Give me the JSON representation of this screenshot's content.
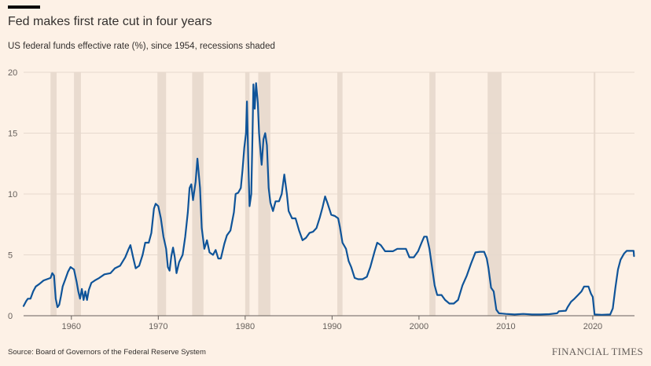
{
  "header": {
    "title": "Fed makes first rate cut in four years",
    "subtitle": "US federal funds effective rate (%), since 1954, recessions shaded"
  },
  "footer": {
    "source": "Source: Board of Governors of the Federal Reserve System",
    "brand": "FINANCIAL TIMES"
  },
  "colors": {
    "background": "#fdf1e6",
    "line": "#0f5499",
    "recession": "#e9dbcf",
    "grid": "#e6d9ce",
    "axis": "#66605c"
  },
  "chart_data": {
    "type": "line",
    "title": "Fed makes first rate cut in four years",
    "xlabel": "",
    "ylabel": "US federal funds effective rate (%)",
    "xlim": [
      1954.5,
      2024.8
    ],
    "ylim": [
      0,
      20
    ],
    "y_ticks": [
      0,
      5,
      10,
      15,
      20
    ],
    "x_ticks": [
      1960,
      1970,
      1980,
      1990,
      2000,
      2010,
      2020
    ],
    "grid": true,
    "recessions": [
      [
        1957.6,
        1958.3
      ],
      [
        1960.3,
        1961.1
      ],
      [
        1969.9,
        1970.9
      ],
      [
        1973.9,
        1975.2
      ],
      [
        1980.0,
        1980.5
      ],
      [
        1981.5,
        1982.9
      ],
      [
        1990.6,
        1991.2
      ],
      [
        2001.2,
        2001.9
      ],
      [
        2007.9,
        2009.5
      ],
      [
        2020.1,
        2020.3
      ]
    ],
    "series": [
      {
        "name": "Federal funds effective rate",
        "points": [
          [
            1954.5,
            0.8
          ],
          [
            1954.8,
            1.2
          ],
          [
            1955.0,
            1.4
          ],
          [
            1955.3,
            1.4
          ],
          [
            1955.6,
            2.0
          ],
          [
            1955.9,
            2.4
          ],
          [
            1956.3,
            2.6
          ],
          [
            1956.8,
            2.9
          ],
          [
            1957.2,
            3.0
          ],
          [
            1957.6,
            3.1
          ],
          [
            1957.8,
            3.5
          ],
          [
            1958.0,
            3.3
          ],
          [
            1958.2,
            1.4
          ],
          [
            1958.4,
            0.7
          ],
          [
            1958.6,
            0.9
          ],
          [
            1958.8,
            1.6
          ],
          [
            1959.0,
            2.4
          ],
          [
            1959.3,
            3.0
          ],
          [
            1959.6,
            3.6
          ],
          [
            1959.9,
            4.0
          ],
          [
            1960.3,
            3.8
          ],
          [
            1960.6,
            2.8
          ],
          [
            1960.8,
            2.0
          ],
          [
            1961.0,
            1.4
          ],
          [
            1961.2,
            2.2
          ],
          [
            1961.4,
            1.3
          ],
          [
            1961.6,
            2.0
          ],
          [
            1961.8,
            1.3
          ],
          [
            1962.0,
            2.1
          ],
          [
            1962.3,
            2.7
          ],
          [
            1962.7,
            2.9
          ],
          [
            1963.2,
            3.1
          ],
          [
            1963.8,
            3.4
          ],
          [
            1964.5,
            3.5
          ],
          [
            1965.0,
            3.9
          ],
          [
            1965.6,
            4.1
          ],
          [
            1966.2,
            4.8
          ],
          [
            1966.6,
            5.5
          ],
          [
            1966.8,
            5.8
          ],
          [
            1967.1,
            4.8
          ],
          [
            1967.4,
            3.9
          ],
          [
            1967.8,
            4.1
          ],
          [
            1968.2,
            5.0
          ],
          [
            1968.5,
            6.0
          ],
          [
            1968.9,
            6.0
          ],
          [
            1969.2,
            6.8
          ],
          [
            1969.5,
            8.8
          ],
          [
            1969.7,
            9.2
          ],
          [
            1970.0,
            9.0
          ],
          [
            1970.3,
            8.0
          ],
          [
            1970.6,
            6.5
          ],
          [
            1970.9,
            5.5
          ],
          [
            1971.1,
            4.0
          ],
          [
            1971.3,
            3.7
          ],
          [
            1971.5,
            4.9
          ],
          [
            1971.7,
            5.6
          ],
          [
            1971.9,
            4.8
          ],
          [
            1972.1,
            3.5
          ],
          [
            1972.4,
            4.4
          ],
          [
            1972.8,
            5.0
          ],
          [
            1973.1,
            6.5
          ],
          [
            1973.4,
            8.5
          ],
          [
            1973.6,
            10.5
          ],
          [
            1973.8,
            10.8
          ],
          [
            1974.0,
            9.5
          ],
          [
            1974.3,
            11.0
          ],
          [
            1974.5,
            12.9
          ],
          [
            1974.8,
            10.5
          ],
          [
            1975.0,
            7.2
          ],
          [
            1975.3,
            5.5
          ],
          [
            1975.6,
            6.2
          ],
          [
            1975.9,
            5.2
          ],
          [
            1976.3,
            5.0
          ],
          [
            1976.6,
            5.4
          ],
          [
            1976.9,
            4.7
          ],
          [
            1977.2,
            4.7
          ],
          [
            1977.6,
            5.9
          ],
          [
            1977.9,
            6.6
          ],
          [
            1978.3,
            7.0
          ],
          [
            1978.7,
            8.5
          ],
          [
            1978.9,
            10.0
          ],
          [
            1979.2,
            10.1
          ],
          [
            1979.5,
            10.5
          ],
          [
            1979.7,
            12.0
          ],
          [
            1979.9,
            13.8
          ],
          [
            1980.1,
            15.0
          ],
          [
            1980.2,
            17.6
          ],
          [
            1980.35,
            13.0
          ],
          [
            1980.5,
            9.0
          ],
          [
            1980.7,
            10.0
          ],
          [
            1980.85,
            15.0
          ],
          [
            1980.95,
            19.0
          ],
          [
            1981.1,
            17.0
          ],
          [
            1981.25,
            19.1
          ],
          [
            1981.45,
            17.5
          ],
          [
            1981.6,
            15.0
          ],
          [
            1981.8,
            13.2
          ],
          [
            1981.9,
            12.4
          ],
          [
            1982.1,
            14.5
          ],
          [
            1982.3,
            15.0
          ],
          [
            1982.5,
            14.0
          ],
          [
            1982.7,
            10.5
          ],
          [
            1982.9,
            9.3
          ],
          [
            1983.2,
            8.6
          ],
          [
            1983.5,
            9.4
          ],
          [
            1983.9,
            9.4
          ],
          [
            1984.2,
            10.0
          ],
          [
            1984.5,
            11.6
          ],
          [
            1984.8,
            10.0
          ],
          [
            1985.0,
            8.6
          ],
          [
            1985.4,
            8.0
          ],
          [
            1985.8,
            8.0
          ],
          [
            1986.2,
            7.0
          ],
          [
            1986.6,
            6.2
          ],
          [
            1987.0,
            6.4
          ],
          [
            1987.4,
            6.8
          ],
          [
            1987.8,
            6.9
          ],
          [
            1988.2,
            7.2
          ],
          [
            1988.6,
            8.1
          ],
          [
            1988.9,
            8.9
          ],
          [
            1989.2,
            9.8
          ],
          [
            1989.5,
            9.2
          ],
          [
            1989.9,
            8.3
          ],
          [
            1990.3,
            8.2
          ],
          [
            1990.7,
            8.0
          ],
          [
            1990.9,
            7.3
          ],
          [
            1991.2,
            6.0
          ],
          [
            1991.6,
            5.5
          ],
          [
            1991.9,
            4.5
          ],
          [
            1992.2,
            4.0
          ],
          [
            1992.6,
            3.1
          ],
          [
            1993.0,
            3.0
          ],
          [
            1993.5,
            3.0
          ],
          [
            1994.0,
            3.2
          ],
          [
            1994.4,
            4.0
          ],
          [
            1994.9,
            5.3
          ],
          [
            1995.2,
            6.0
          ],
          [
            1995.6,
            5.8
          ],
          [
            1996.1,
            5.3
          ],
          [
            1996.6,
            5.3
          ],
          [
            1997.0,
            5.3
          ],
          [
            1997.5,
            5.5
          ],
          [
            1998.0,
            5.5
          ],
          [
            1998.5,
            5.5
          ],
          [
            1998.9,
            4.8
          ],
          [
            1999.4,
            4.8
          ],
          [
            1999.9,
            5.3
          ],
          [
            2000.3,
            6.0
          ],
          [
            2000.6,
            6.5
          ],
          [
            2000.9,
            6.5
          ],
          [
            2001.2,
            5.5
          ],
          [
            2001.5,
            4.0
          ],
          [
            2001.8,
            2.5
          ],
          [
            2002.1,
            1.7
          ],
          [
            2002.6,
            1.7
          ],
          [
            2003.0,
            1.3
          ],
          [
            2003.5,
            1.0
          ],
          [
            2004.0,
            1.0
          ],
          [
            2004.5,
            1.3
          ],
          [
            2005.0,
            2.5
          ],
          [
            2005.5,
            3.3
          ],
          [
            2006.0,
            4.3
          ],
          [
            2006.5,
            5.2
          ],
          [
            2007.0,
            5.25
          ],
          [
            2007.5,
            5.25
          ],
          [
            2007.8,
            4.7
          ],
          [
            2008.0,
            3.9
          ],
          [
            2008.3,
            2.3
          ],
          [
            2008.6,
            2.0
          ],
          [
            2008.9,
            0.5
          ],
          [
            2009.2,
            0.2
          ],
          [
            2010.0,
            0.15
          ],
          [
            2011.0,
            0.1
          ],
          [
            2012.0,
            0.15
          ],
          [
            2013.0,
            0.1
          ],
          [
            2014.0,
            0.1
          ],
          [
            2015.0,
            0.13
          ],
          [
            2015.9,
            0.2
          ],
          [
            2016.1,
            0.37
          ],
          [
            2016.9,
            0.41
          ],
          [
            2017.1,
            0.7
          ],
          [
            2017.5,
            1.15
          ],
          [
            2017.9,
            1.4
          ],
          [
            2018.3,
            1.7
          ],
          [
            2018.7,
            2.0
          ],
          [
            2019.0,
            2.4
          ],
          [
            2019.5,
            2.4
          ],
          [
            2019.8,
            1.8
          ],
          [
            2020.0,
            1.55
          ],
          [
            2020.2,
            0.1
          ],
          [
            2021.0,
            0.08
          ],
          [
            2022.0,
            0.1
          ],
          [
            2022.3,
            0.6
          ],
          [
            2022.6,
            2.3
          ],
          [
            2022.9,
            3.8
          ],
          [
            2023.2,
            4.6
          ],
          [
            2023.6,
            5.1
          ],
          [
            2023.9,
            5.33
          ],
          [
            2024.7,
            5.33
          ],
          [
            2024.75,
            4.9
          ]
        ]
      }
    ]
  }
}
